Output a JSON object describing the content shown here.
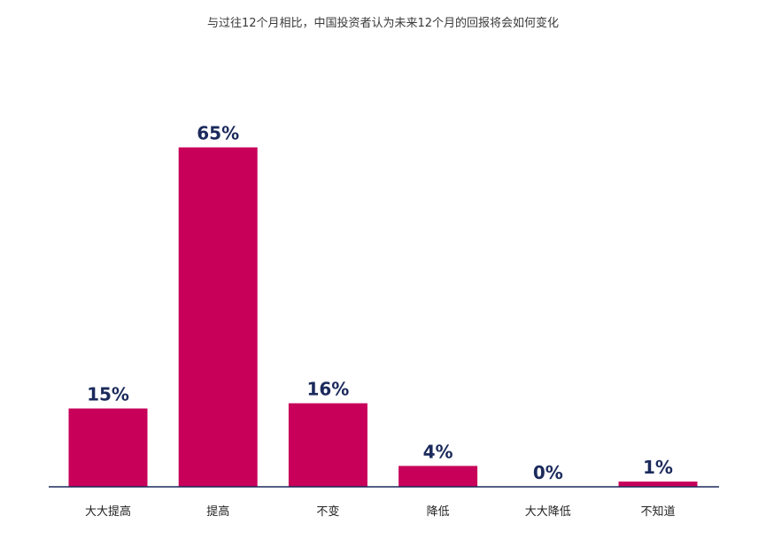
{
  "chart_data": {
    "type": "bar",
    "title": "与过往12个月相比，中国投资者认为未来12个月的回报将会如何变化",
    "categories": [
      "大大提高",
      "提高",
      "不变",
      "降低",
      "大大降低",
      "不知道"
    ],
    "values": [
      15,
      65,
      16,
      4,
      0,
      1
    ],
    "value_labels": [
      "15%",
      "65%",
      "16%",
      "4%",
      "0%",
      "1%"
    ],
    "unit": "%",
    "ylim": [
      0,
      100
    ],
    "grid": false,
    "legend": "none"
  },
  "colors": {
    "bar": "#C8005A",
    "label": "#1B2A5C",
    "axis": "#1B2A5C",
    "category": "#222222",
    "title": "#3a3a3a"
  }
}
